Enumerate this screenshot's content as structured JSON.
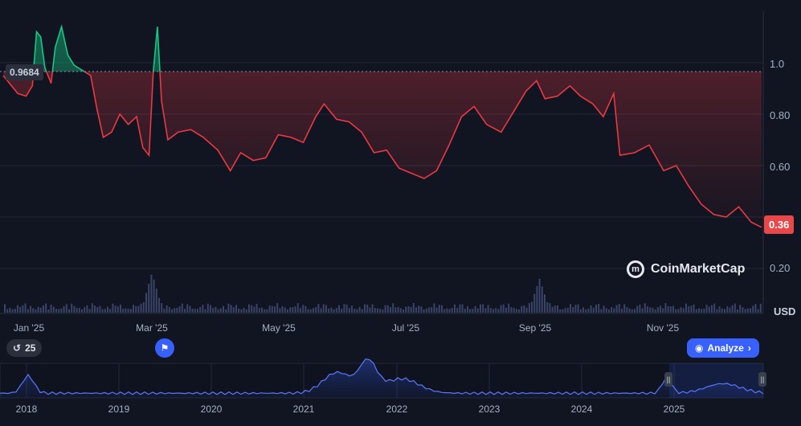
{
  "chart_data": {
    "type": "line",
    "currency": "USD",
    "y_ticks": [
      "0.20",
      "0.40",
      "0.60",
      "0.80",
      "1.0"
    ],
    "ylim": [
      0.12,
      1.22
    ],
    "x_labels": [
      "Jan '25",
      "Mar '25",
      "May '25",
      "Jul '25",
      "Sep '25",
      "Nov '25"
    ],
    "reference_value": "0.9684",
    "current_value": "0.36",
    "series": [
      {
        "points": [
          [
            "2024-12-19",
            0.95
          ],
          [
            "2024-12-22",
            0.92
          ],
          [
            "2024-12-26",
            0.88
          ],
          [
            "2024-12-30",
            0.87
          ],
          [
            "2025-01-02",
            0.91
          ],
          [
            "2025-01-04",
            1.12
          ],
          [
            "2025-01-06",
            1.1
          ],
          [
            "2025-01-08",
            0.98
          ],
          [
            "2025-01-11",
            0.92
          ],
          [
            "2025-01-13",
            1.06
          ],
          [
            "2025-01-16",
            1.14
          ],
          [
            "2025-01-19",
            1.03
          ],
          [
            "2025-01-22",
            0.99
          ],
          [
            "2025-01-26",
            0.97
          ],
          [
            "2025-01-30",
            0.95
          ],
          [
            "2025-02-02",
            0.82
          ],
          [
            "2025-02-05",
            0.71
          ],
          [
            "2025-02-09",
            0.73
          ],
          [
            "2025-02-13",
            0.8
          ],
          [
            "2025-02-17",
            0.76
          ],
          [
            "2025-02-21",
            0.79
          ],
          [
            "2025-02-24",
            0.67
          ],
          [
            "2025-02-27",
            0.64
          ],
          [
            "2025-03-01",
            0.96
          ],
          [
            "2025-03-03",
            1.14
          ],
          [
            "2025-03-05",
            0.85
          ],
          [
            "2025-03-08",
            0.7
          ],
          [
            "2025-03-13",
            0.73
          ],
          [
            "2025-03-19",
            0.74
          ],
          [
            "2025-03-25",
            0.71
          ],
          [
            "2025-04-01",
            0.66
          ],
          [
            "2025-04-07",
            0.58
          ],
          [
            "2025-04-12",
            0.65
          ],
          [
            "2025-04-18",
            0.62
          ],
          [
            "2025-04-24",
            0.63
          ],
          [
            "2025-04-30",
            0.72
          ],
          [
            "2025-05-06",
            0.71
          ],
          [
            "2025-05-12",
            0.69
          ],
          [
            "2025-05-18",
            0.79
          ],
          [
            "2025-05-22",
            0.84
          ],
          [
            "2025-05-28",
            0.78
          ],
          [
            "2025-06-03",
            0.77
          ],
          [
            "2025-06-09",
            0.73
          ],
          [
            "2025-06-15",
            0.65
          ],
          [
            "2025-06-21",
            0.66
          ],
          [
            "2025-06-27",
            0.59
          ],
          [
            "2025-07-03",
            0.57
          ],
          [
            "2025-07-09",
            0.55
          ],
          [
            "2025-07-15",
            0.58
          ],
          [
            "2025-07-21",
            0.68
          ],
          [
            "2025-07-27",
            0.79
          ],
          [
            "2025-08-02",
            0.83
          ],
          [
            "2025-08-08",
            0.76
          ],
          [
            "2025-08-15",
            0.73
          ],
          [
            "2025-08-21",
            0.81
          ],
          [
            "2025-08-27",
            0.89
          ],
          [
            "2025-09-01",
            0.93
          ],
          [
            "2025-09-05",
            0.86
          ],
          [
            "2025-09-11",
            0.87
          ],
          [
            "2025-09-17",
            0.91
          ],
          [
            "2025-09-22",
            0.87
          ],
          [
            "2025-09-28",
            0.84
          ],
          [
            "2025-10-03",
            0.79
          ],
          [
            "2025-10-08",
            0.88
          ],
          [
            "2025-10-11",
            0.64
          ],
          [
            "2025-10-18",
            0.65
          ],
          [
            "2025-10-25",
            0.68
          ],
          [
            "2025-11-01",
            0.58
          ],
          [
            "2025-11-07",
            0.6
          ],
          [
            "2025-11-13",
            0.52
          ],
          [
            "2025-11-19",
            0.45
          ],
          [
            "2025-11-25",
            0.41
          ],
          [
            "2025-12-01",
            0.4
          ],
          [
            "2025-12-07",
            0.44
          ],
          [
            "2025-12-13",
            0.38
          ],
          [
            "2025-12-18",
            0.36
          ]
        ]
      }
    ],
    "volume_spikes": [
      [
        "2025-02-28",
        1.0
      ],
      [
        "2025-09-02",
        0.85
      ]
    ],
    "navigator": {
      "labels": [
        "2018",
        "2019",
        "2020",
        "2021",
        "2022",
        "2023",
        "2024",
        "2025"
      ]
    }
  },
  "controls": {
    "history_label": "25",
    "analyze_label": "Analyze",
    "usd_label": "USD",
    "brand": "CoinMarketCap"
  },
  "colors": {
    "up": "#16c784",
    "down": "#ea3943",
    "accent": "#3861fb"
  }
}
